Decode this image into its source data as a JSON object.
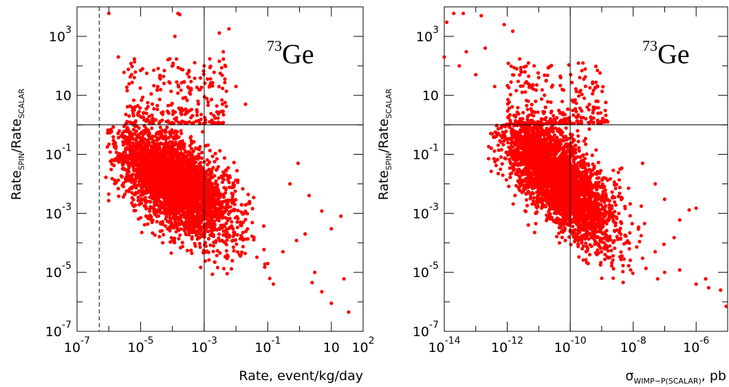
{
  "chart_data": [
    {
      "type": "scatter",
      "panel": "left",
      "annotation": "73Ge",
      "annotation_mass": "73",
      "annotation_element": "Ge",
      "xlabel": "Rate, event/kg/day",
      "ylabel_main": "Rate",
      "ylabel_sub": "SPIN",
      "ylabel_slash": "/",
      "ylabel_main2": "Rate",
      "ylabel_sub2": "SCALAR",
      "x_scale": "log",
      "y_scale": "log",
      "xlim": [
        1e-07,
        100
      ],
      "ylim": [
        1e-07,
        10000
      ],
      "x_ticks": [
        {
          "base": "10",
          "exp": "-7",
          "value": 1e-07
        },
        {
          "base": "10",
          "exp": "-5",
          "value": 1e-05
        },
        {
          "base": "10",
          "exp": "-3",
          "value": 0.001
        },
        {
          "base": "10",
          "exp": "-1",
          "value": 0.1
        },
        {
          "base": "10",
          "exp": "",
          "value": 10
        },
        {
          "base": "10",
          "exp": "2",
          "value": 100
        }
      ],
      "y_ticks": [
        {
          "base": "10",
          "exp": "-7",
          "value": 1e-07
        },
        {
          "base": "10",
          "exp": "-5",
          "value": 1e-05
        },
        {
          "base": "10",
          "exp": "-3",
          "value": 0.001
        },
        {
          "base": "10",
          "exp": "-1",
          "value": 0.1
        },
        {
          "base": "10",
          "exp": "",
          "value": 10
        },
        {
          "base": "10",
          "exp": "3",
          "value": 1000
        }
      ],
      "reference_lines": {
        "vertical_solid": 0.001,
        "vertical_dashed": 5e-07,
        "horizontal_solid": 1
      },
      "point_color": "#ff0000",
      "cluster": {
        "description": "dense cloud of several thousand model points",
        "center_log_x": -3.9,
        "center_log_y": -2.0,
        "spread_log_x": 0.9,
        "spread_log_y": 0.75,
        "slope": -0.6
      },
      "outlier_points": [
        [
          1e-06,
          6000
        ],
        [
          0.00015,
          6000
        ],
        [
          0.00017,
          5500
        ],
        [
          0.00012,
          1000
        ],
        [
          0.003,
          1300
        ],
        [
          0.006,
          1800
        ],
        [
          2e-06,
          200
        ],
        [
          5e-06,
          120
        ],
        [
          3e-06,
          60
        ],
        [
          1e-05,
          70
        ],
        [
          4e-05,
          40
        ],
        [
          0.001,
          100
        ],
        [
          0.004,
          300
        ],
        [
          0.01,
          20
        ],
        [
          0.02,
          5
        ],
        [
          0.9,
          0.05
        ],
        [
          0.5,
          0.01
        ],
        [
          2,
          0.004
        ],
        [
          5,
          0.0012
        ],
        [
          10,
          0.0003
        ],
        [
          1.5,
          0.0002
        ],
        [
          0.8,
          0.00012
        ],
        [
          0.3,
          5e-05
        ],
        [
          0.1,
          2e-05
        ],
        [
          3,
          1e-05
        ],
        [
          20,
          0.0008
        ],
        [
          25,
          6e-06
        ],
        [
          2.5,
          4.5e-06
        ],
        [
          5,
          2.2e-06
        ],
        [
          35,
          4.5e-07
        ],
        [
          10,
          9e-07
        ],
        [
          0.15,
          4e-06
        ]
      ]
    },
    {
      "type": "scatter",
      "panel": "right",
      "annotation": "73Ge",
      "annotation_mass": "73",
      "annotation_element": "Ge",
      "xlabel_main": "σ",
      "xlabel_sub": "WIMP−P(SCALAR)",
      "xlabel_tail": ", pb",
      "ylabel_main": "Rate",
      "ylabel_sub": "SPIN",
      "ylabel_slash": "/",
      "ylabel_main2": "Rate",
      "ylabel_sub2": "SCALAR",
      "x_scale": "log",
      "y_scale": "log",
      "xlim": [
        1e-14,
        1e-05
      ],
      "ylim": [
        1e-07,
        10000
      ],
      "x_ticks": [
        {
          "base": "10",
          "exp": "-14",
          "value": 1e-14
        },
        {
          "base": "10",
          "exp": "-12",
          "value": 1e-12
        },
        {
          "base": "10",
          "exp": "-10",
          "value": 1e-10
        },
        {
          "base": "10",
          "exp": "-8",
          "value": 1e-08
        },
        {
          "base": "10",
          "exp": "-6",
          "value": 1e-06
        }
      ],
      "y_ticks": [
        {
          "base": "10",
          "exp": "-7",
          "value": 1e-07
        },
        {
          "base": "10",
          "exp": "-5",
          "value": 1e-05
        },
        {
          "base": "10",
          "exp": "-3",
          "value": 0.001
        },
        {
          "base": "10",
          "exp": "-1",
          "value": 0.1
        },
        {
          "base": "10",
          "exp": "",
          "value": 10
        },
        {
          "base": "10",
          "exp": "3",
          "value": 1000
        }
      ],
      "reference_lines": {
        "vertical_solid": 1e-10,
        "horizontal_solid": 1
      },
      "point_color": "#ff0000",
      "cluster": {
        "description": "dense cloud of several thousand model points",
        "center_log_x": -10.4,
        "center_log_y": -1.8,
        "spread_log_x": 0.9,
        "spread_log_y": 0.75,
        "slope": -0.85
      },
      "outlier_points": [
        [
          1e-14,
          200
        ],
        [
          1.2e-14,
          3000
        ],
        [
          2e-14,
          6000
        ],
        [
          4e-14,
          6000
        ],
        [
          1.5e-13,
          5000
        ],
        [
          8e-13,
          2500
        ],
        [
          1.5e-12,
          1500
        ],
        [
          2e-13,
          400
        ],
        [
          5e-14,
          300
        ],
        [
          3e-14,
          100
        ],
        [
          1e-13,
          50
        ],
        [
          4e-13,
          20
        ],
        [
          2e-12,
          80
        ],
        [
          1e-11,
          40
        ],
        [
          5e-11,
          40
        ],
        [
          2e-08,
          0.05
        ],
        [
          5e-08,
          0.01
        ],
        [
          1e-07,
          0.003
        ],
        [
          3e-07,
          0.0006
        ],
        [
          6e-07,
          0.0013
        ],
        [
          1e-06,
          0.0015
        ],
        [
          2e-07,
          0.00015
        ],
        [
          5e-08,
          5e-05
        ],
        [
          2e-08,
          3e-05
        ],
        [
          1e-07,
          1e-05
        ],
        [
          3e-07,
          1.2e-05
        ],
        [
          6e-08,
          6e-06
        ],
        [
          1e-06,
          4e-06
        ],
        [
          2e-06,
          6e-06
        ],
        [
          2.5e-06,
          3e-06
        ],
        [
          6e-06,
          2.5e-06
        ],
        [
          9e-06,
          7e-07
        ]
      ]
    }
  ]
}
